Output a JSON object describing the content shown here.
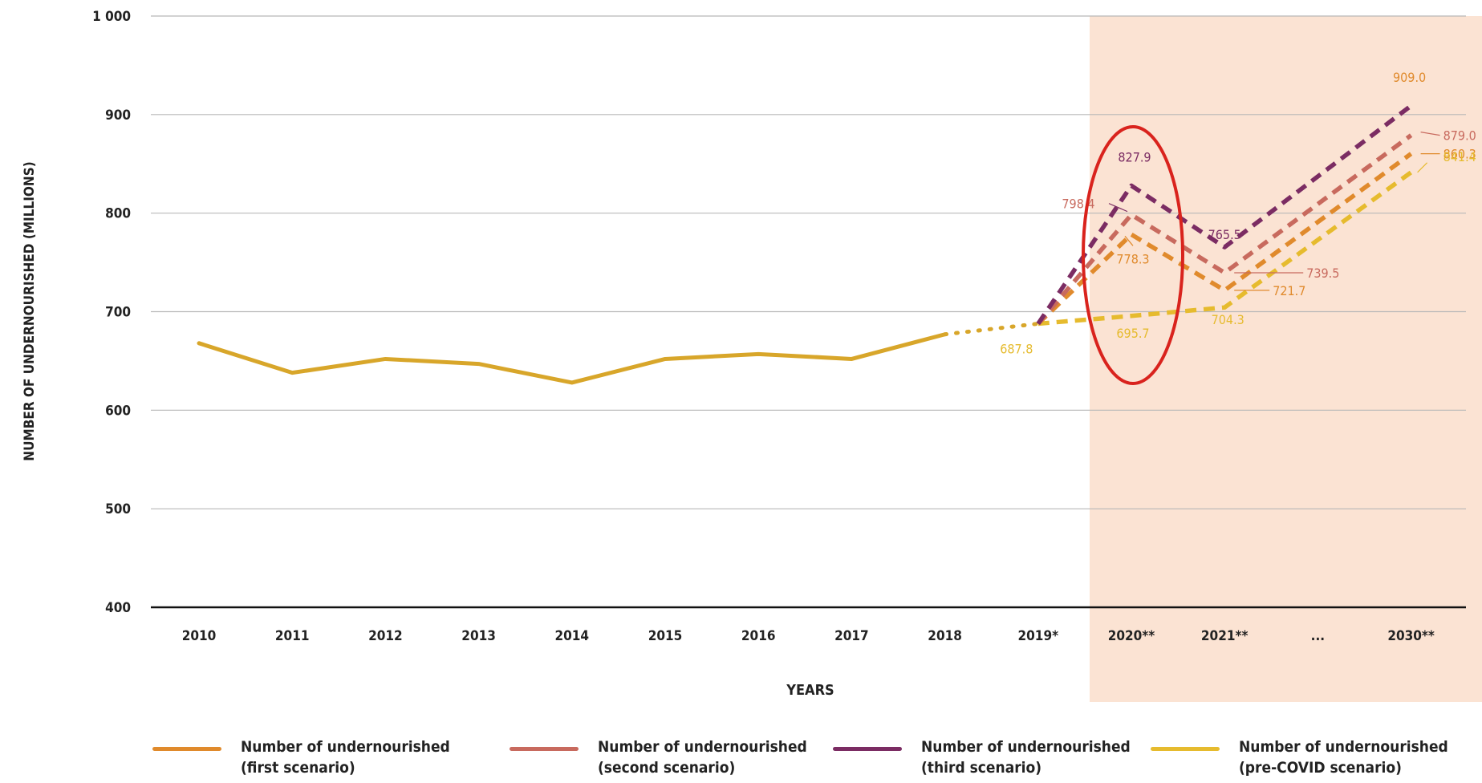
{
  "chart_data": {
    "type": "line",
    "xlabel": "YEARS",
    "ylabel": "NUMBER OF UNDERNOURISHED (MILLIONS)",
    "ylim": [
      400,
      1000
    ],
    "yticks": [
      "400",
      "500",
      "600",
      "700",
      "800",
      "900",
      "1 000"
    ],
    "categories": [
      "2010",
      "2011",
      "2012",
      "2013",
      "2014",
      "2015",
      "2016",
      "2017",
      "2018",
      "2019*",
      "2020**",
      "2021**",
      "...",
      "2030**"
    ],
    "historical": {
      "x": [
        "2010",
        "2011",
        "2012",
        "2013",
        "2014",
        "2015",
        "2016",
        "2017",
        "2018"
      ],
      "values": [
        668,
        638,
        652,
        647,
        628,
        652,
        657,
        652,
        677
      ]
    },
    "series": [
      {
        "name": "Number of undernourished (first scenario)",
        "x": [
          "2019*",
          "2020**",
          "2021**",
          "2030**"
        ],
        "values": [
          687.8,
          778.3,
          721.7,
          860.3
        ]
      },
      {
        "name": "Number of undernourished (second scenario)",
        "x": [
          "2019*",
          "2020**",
          "2021**",
          "2030**"
        ],
        "values": [
          687.8,
          798.4,
          739.5,
          879.0
        ]
      },
      {
        "name": "Number of undernourished (third scenario)",
        "x": [
          "2019*",
          "2020**",
          "2021**",
          "2030**"
        ],
        "values": [
          687.8,
          827.9,
          765.5,
          909.0
        ]
      },
      {
        "name": "Number of undernourished (pre-COVID scenario)",
        "x": [
          "2019*",
          "2020**",
          "2021**",
          "2030**"
        ],
        "values": [
          687.8,
          695.7,
          704.3,
          841.4
        ]
      }
    ],
    "data_labels": {
      "s2019": "687.8",
      "pre2020": "695.7",
      "pre2021": "704.3",
      "first2020": "778.3",
      "second2020": "798.4",
      "third2020": "827.9",
      "first2021": "721.7",
      "second2021": "739.5",
      "third2021": "765.5",
      "third2030": "909.0",
      "second2030": "879.0",
      "first2030": "860.3",
      "pre2030": "841.4"
    },
    "projection_shading": true,
    "grid": true,
    "legend_position": "bottom"
  },
  "colors": {
    "historical": "#d8a62a",
    "first": "#e08a2c",
    "second": "#c86a5e",
    "third": "#7b2c63",
    "pre": "#e6bb2e",
    "shade": "#fbe3d3",
    "highlight_ellipse": "#d9231d"
  },
  "legend": [
    {
      "line1": "Number of undernourished",
      "line2": "(first scenario)"
    },
    {
      "line1": "Number of undernourished",
      "line2": "(second scenario)"
    },
    {
      "line1": "Number of undernourished",
      "line2": "(third scenario)"
    },
    {
      "line1": "Number of undernourished",
      "line2": "(pre-COVID scenario)"
    }
  ]
}
